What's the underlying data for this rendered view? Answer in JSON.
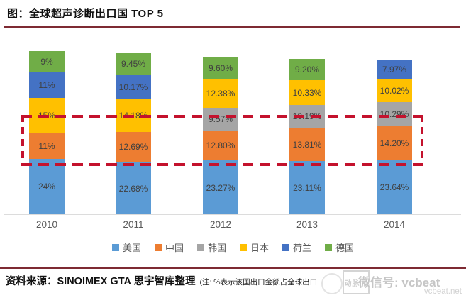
{
  "title": "图：全球超声诊断出口国 TOP 5",
  "colors": {
    "accent_rule": "#7e2a33",
    "highlight_box": "#c4122d",
    "axis_line": "#dcdcdc",
    "label_text": "#404040"
  },
  "chart_data": {
    "type": "bar",
    "stacked": true,
    "title": "全球超声诊断出口国 TOP 5",
    "categories": [
      "2010",
      "2011",
      "2012",
      "2013",
      "2014"
    ],
    "series": [
      {
        "name": "美国",
        "color": "#5B9BD5",
        "values": [
          24,
          22.68,
          23.27,
          23.11,
          23.64
        ],
        "labels": [
          "24%",
          "22.68%",
          "23.27%",
          "23.11%",
          "23.64%"
        ]
      },
      {
        "name": "中国",
        "color": "#ED7D31",
        "values": [
          11,
          12.69,
          12.8,
          13.81,
          14.2
        ],
        "labels": [
          "11%",
          "12.69%",
          "12.80%",
          "13.81%",
          "14.20%"
        ]
      },
      {
        "name": "韩国",
        "color": "#A5A5A5",
        "values": [
          0,
          0,
          9.57,
          10.19,
          10.29
        ],
        "labels": [
          "",
          "",
          "9.57%",
          "10.19%",
          "10.29%"
        ]
      },
      {
        "name": "日本",
        "color": "#FFC000",
        "values": [
          15,
          14.18,
          12.38,
          10.33,
          10.02
        ],
        "labels": [
          "15%",
          "14.18%",
          "12.38%",
          "10.33%",
          "10.02%"
        ]
      },
      {
        "name": "荷兰",
        "color": "#4472C4",
        "values": [
          11,
          10.17,
          0,
          0,
          7.97
        ],
        "labels": [
          "11%",
          "10.17%",
          "",
          "",
          "7.97%"
        ]
      },
      {
        "name": "德国",
        "color": "#70AD47",
        "values": [
          9,
          9.45,
          9.6,
          9.2,
          0
        ],
        "labels": [
          "9%",
          "9.45%",
          "9.60%",
          "9.20%",
          ""
        ]
      }
    ],
    "legend": [
      "美国",
      "中国",
      "韩国",
      "日本",
      "荷兰",
      "德国"
    ],
    "legend_position": "bottom",
    "xlabel": "",
    "ylabel": "",
    "ylim": [
      0,
      70
    ],
    "grid": false,
    "annotation": "red dashed rectangle highlighting the China (orange) segments across all years"
  },
  "footer": {
    "source_label": "资料来源：SINOIMEX GTA  思宇智库整理",
    "note": "(注: %表示该国出口金额占全球出口",
    "watermark": {
      "logo_text": "动脉网",
      "wechat": "微信号: vcbeat",
      "site": "vcbeat.net"
    }
  }
}
